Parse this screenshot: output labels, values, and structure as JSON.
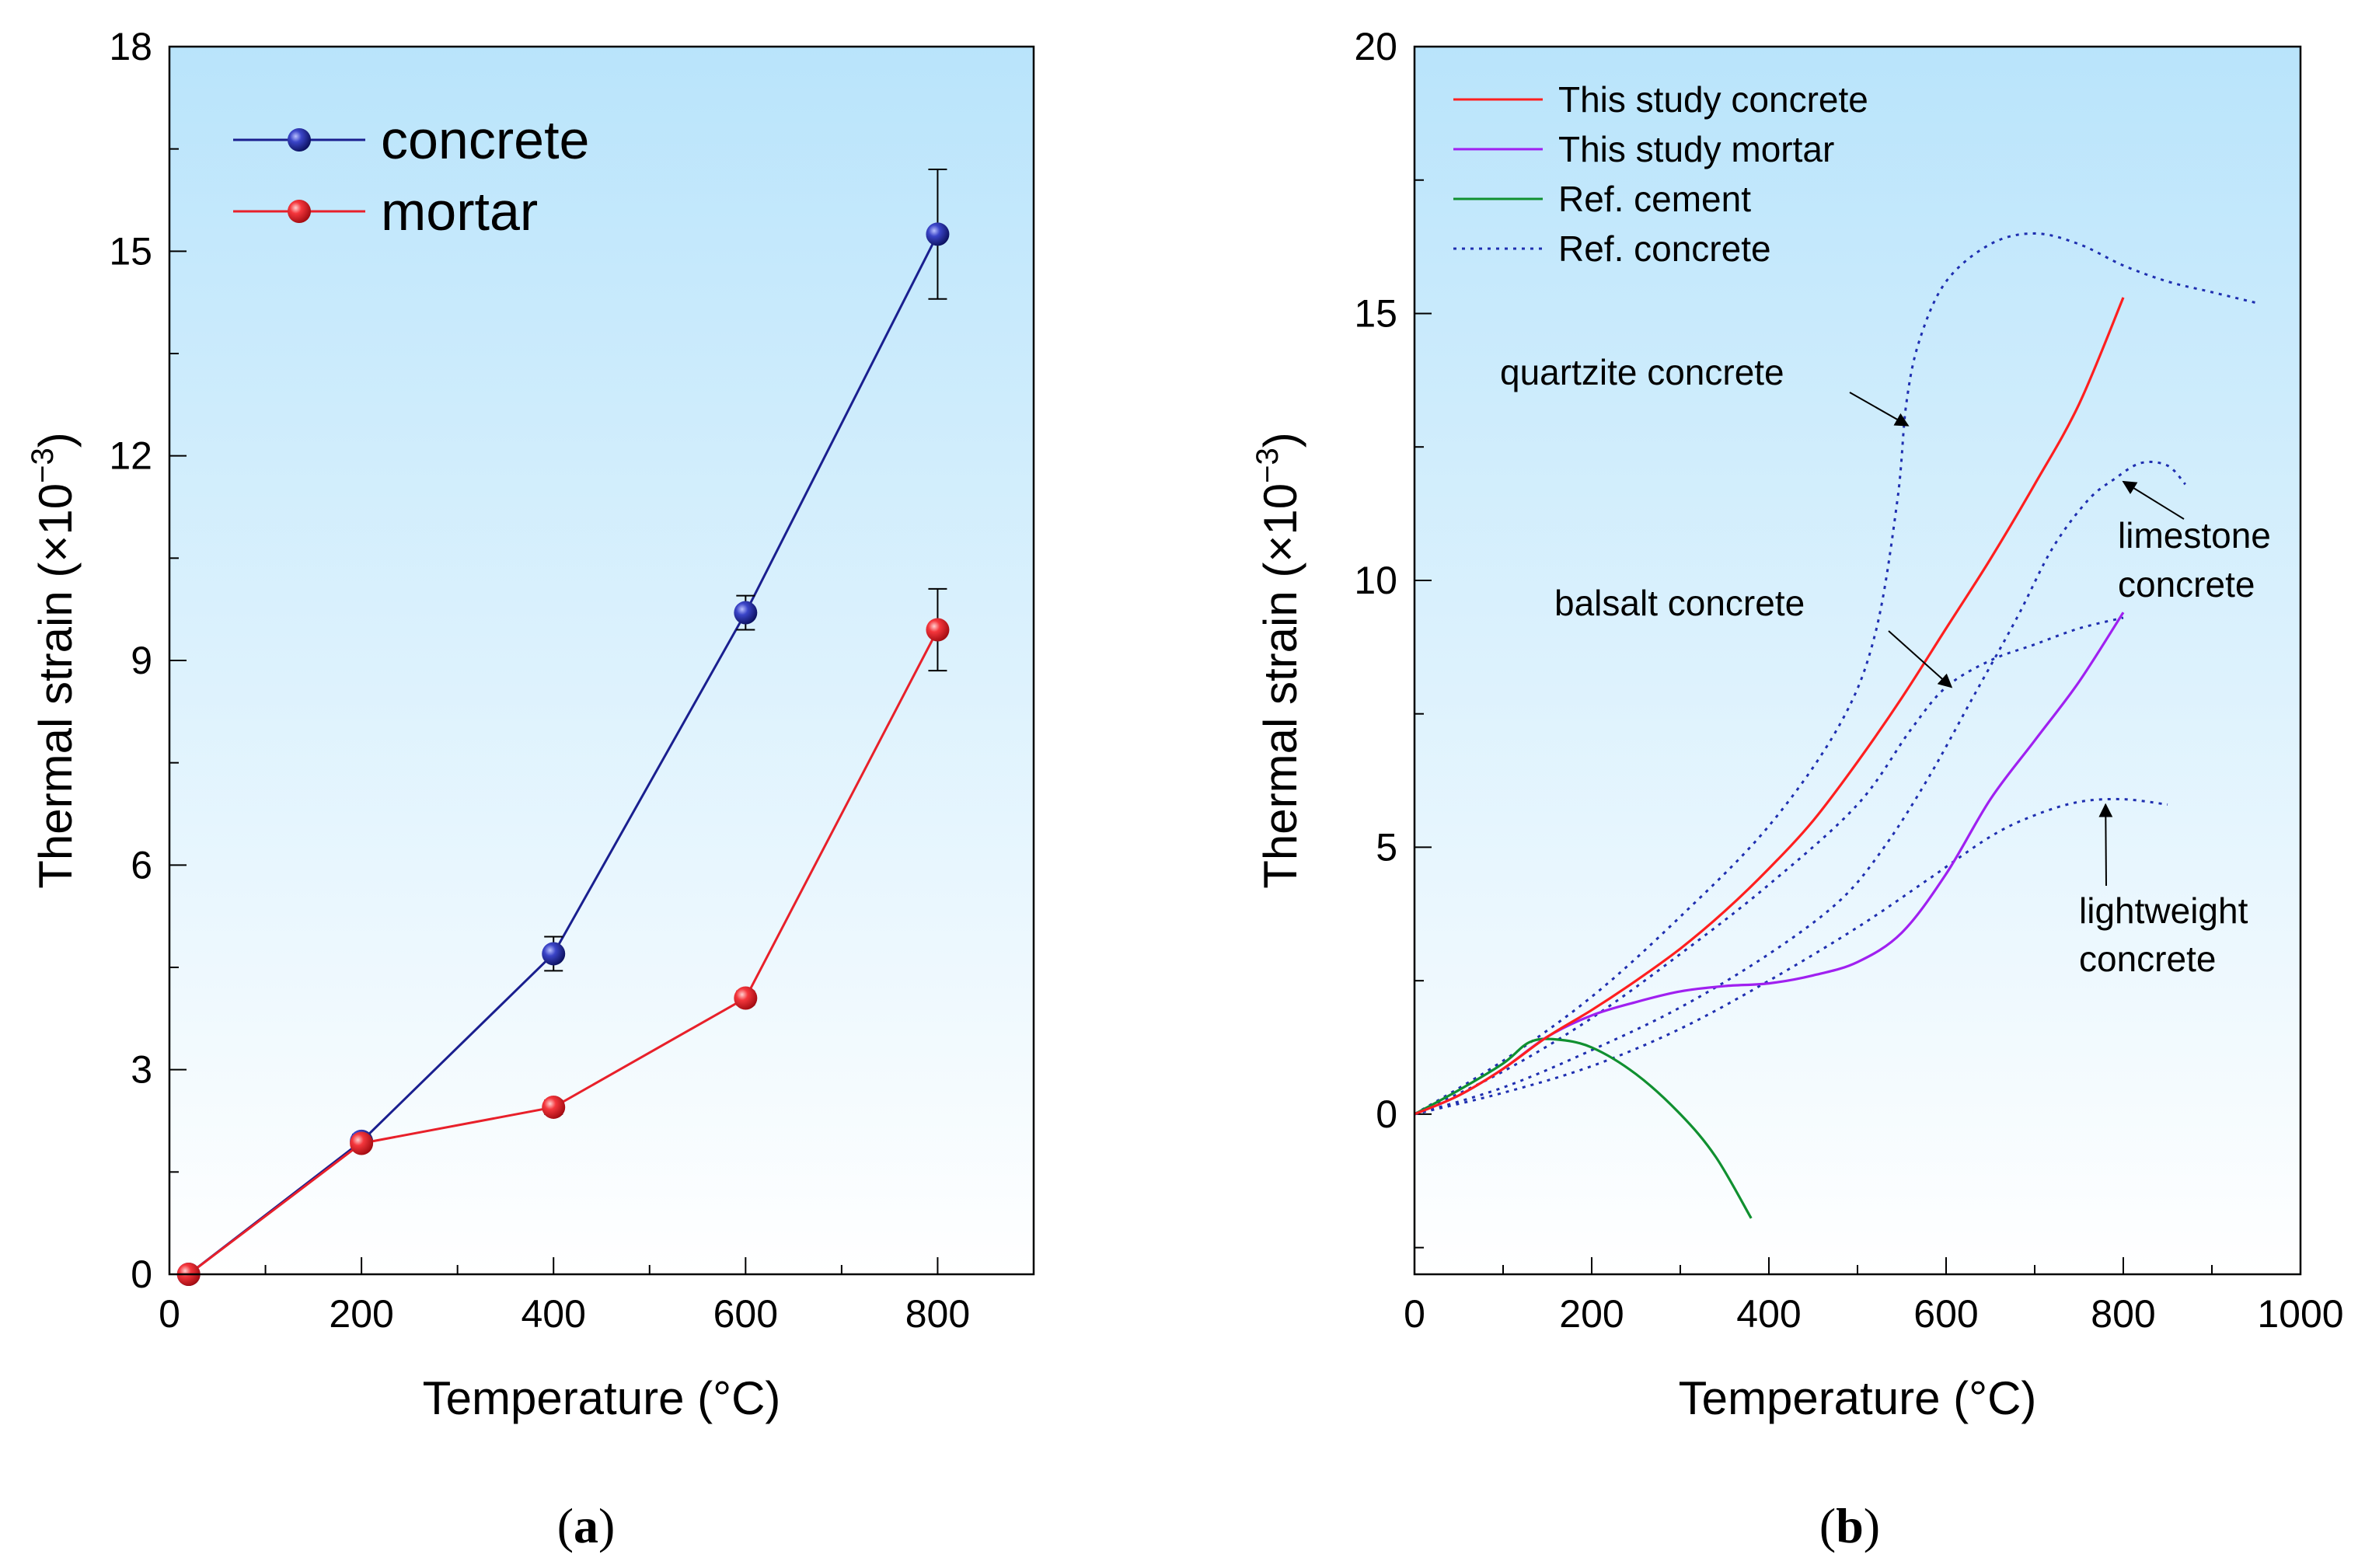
{
  "chart_data": [
    {
      "type": "line",
      "panel_label": "a",
      "xlabel": "Temperature (°C)",
      "ylabel": "Thermal strain (×10",
      "ylabel_exp": "−3",
      "xlim": [
        0,
        900
      ],
      "ylim": [
        0,
        18
      ],
      "x_ticks": [
        "0",
        "200",
        "400",
        "600",
        "800"
      ],
      "y_ticks": [
        "0",
        "3",
        "6",
        "9",
        "12",
        "15",
        "18"
      ],
      "background_gradient": [
        "#b9e4fb",
        "#ffffff"
      ],
      "legend": {
        "position": "top-left",
        "font": "large"
      },
      "series": [
        {
          "name": "concrete",
          "color": "#1a1f8f",
          "marker": "sphere",
          "points": [
            {
              "x": 20,
              "y": 0.0
            },
            {
              "x": 200,
              "y": 1.95,
              "err": 0.1
            },
            {
              "x": 400,
              "y": 4.7,
              "err": 0.25
            },
            {
              "x": 600,
              "y": 9.7,
              "err": 0.25
            },
            {
              "x": 800,
              "y": 15.25,
              "err": 0.95
            }
          ]
        },
        {
          "name": "mortar",
          "color": "#e8202a",
          "marker": "sphere",
          "points": [
            {
              "x": 20,
              "y": 0.0
            },
            {
              "x": 200,
              "y": 1.92,
              "err": 0.08
            },
            {
              "x": 400,
              "y": 2.45,
              "err": 0.1
            },
            {
              "x": 600,
              "y": 4.05,
              "err": 0.1
            },
            {
              "x": 800,
              "y": 9.45,
              "err": 0.6
            }
          ]
        }
      ]
    },
    {
      "type": "line",
      "panel_label": "b",
      "xlabel": "Temperature (°C)",
      "ylabel": "Thermal strain (×10",
      "ylabel_exp": "−3",
      "xlim": [
        0,
        1000
      ],
      "ylim": [
        -3,
        20
      ],
      "x_ticks": [
        "0",
        "200",
        "400",
        "600",
        "800",
        "1000"
      ],
      "y_ticks": [
        "0",
        "5",
        "10",
        "15",
        "20"
      ],
      "background_gradient": [
        "#b9e4fb",
        "#ffffff"
      ],
      "legend": {
        "position": "top-left"
      },
      "series": [
        {
          "name": "This study concrete",
          "color": "#ff1f1f",
          "style": "solid",
          "points": [
            [
              0,
              0
            ],
            [
              50,
              0.35
            ],
            [
              100,
              0.85
            ],
            [
              150,
              1.45
            ],
            [
              200,
              1.95
            ],
            [
              250,
              2.5
            ],
            [
              300,
              3.1
            ],
            [
              350,
              3.8
            ],
            [
              400,
              4.6
            ],
            [
              450,
              5.5
            ],
            [
              500,
              6.6
            ],
            [
              550,
              7.8
            ],
            [
              600,
              9.1
            ],
            [
              650,
              10.4
            ],
            [
              700,
              11.8
            ],
            [
              750,
              13.3
            ],
            [
              800,
              15.3
            ]
          ]
        },
        {
          "name": "This study mortar",
          "color": "#a020f0",
          "style": "solid",
          "points": [
            [
              0,
              0
            ],
            [
              50,
              0.35
            ],
            [
              100,
              0.85
            ],
            [
              150,
              1.45
            ],
            [
              200,
              1.85
            ],
            [
              250,
              2.1
            ],
            [
              300,
              2.3
            ],
            [
              350,
              2.4
            ],
            [
              400,
              2.45
            ],
            [
              450,
              2.6
            ],
            [
              500,
              2.85
            ],
            [
              550,
              3.4
            ],
            [
              600,
              4.5
            ],
            [
              650,
              5.9
            ],
            [
              700,
              7.0
            ],
            [
              750,
              8.1
            ],
            [
              800,
              9.4
            ]
          ]
        },
        {
          "name": "Ref. cement",
          "color": "#109030",
          "style": "solid",
          "points": [
            [
              0,
              0
            ],
            [
              50,
              0.45
            ],
            [
              100,
              0.95
            ],
            [
              130,
              1.35
            ],
            [
              160,
              1.4
            ],
            [
              200,
              1.25
            ],
            [
              250,
              0.75
            ],
            [
              300,
              0.0
            ],
            [
              340,
              -0.8
            ],
            [
              380,
              -1.95
            ]
          ]
        },
        {
          "name": "Ref. concrete",
          "color": "#1f2fb0",
          "style": "dotted",
          "label": "quartzite concrete",
          "points": [
            [
              0,
              0
            ],
            [
              100,
              1.0
            ],
            [
              200,
              2.2
            ],
            [
              300,
              3.7
            ],
            [
              400,
              5.4
            ],
            [
              480,
              7.3
            ],
            [
              520,
              9.0
            ],
            [
              545,
              11.5
            ],
            [
              555,
              13.3
            ],
            [
              570,
              14.5
            ],
            [
              600,
              15.6
            ],
            [
              650,
              16.3
            ],
            [
              700,
              16.5
            ],
            [
              750,
              16.3
            ],
            [
              800,
              15.9
            ],
            [
              850,
              15.6
            ],
            [
              900,
              15.4
            ],
            [
              950,
              15.2
            ]
          ]
        },
        {
          "name": "",
          "color": "#1f2fb0",
          "style": "dotted",
          "label": "balsalt concrete",
          "points": [
            [
              0,
              0
            ],
            [
              100,
              0.8
            ],
            [
              200,
              1.8
            ],
            [
              300,
              3.0
            ],
            [
              400,
              4.3
            ],
            [
              500,
              5.8
            ],
            [
              560,
              7.2
            ],
            [
              600,
              8.0
            ],
            [
              650,
              8.5
            ],
            [
              700,
              8.8
            ],
            [
              750,
              9.1
            ],
            [
              800,
              9.3
            ]
          ]
        },
        {
          "name": "",
          "color": "#1f2fb0",
          "style": "dotted",
          "label": "limestone concrete",
          "points": [
            [
              0,
              0
            ],
            [
              100,
              0.5
            ],
            [
              200,
              1.2
            ],
            [
              300,
              2.0
            ],
            [
              400,
              3.0
            ],
            [
              480,
              4.0
            ],
            [
              530,
              5.0
            ],
            [
              580,
              6.3
            ],
            [
              630,
              7.8
            ],
            [
              680,
              9.3
            ],
            [
              720,
              10.6
            ],
            [
              760,
              11.5
            ],
            [
              790,
              11.9
            ],
            [
              820,
              12.2
            ],
            [
              850,
              12.15
            ],
            [
              870,
              11.8
            ]
          ]
        },
        {
          "name": "",
          "color": "#1f2fb0",
          "style": "dotted",
          "label": "lightweight concrete",
          "points": [
            [
              0,
              0
            ],
            [
              100,
              0.4
            ],
            [
              200,
              0.9
            ],
            [
              300,
              1.6
            ],
            [
              400,
              2.5
            ],
            [
              500,
              3.5
            ],
            [
              580,
              4.4
            ],
            [
              650,
              5.2
            ],
            [
              700,
              5.6
            ],
            [
              750,
              5.85
            ],
            [
              800,
              5.9
            ],
            [
              850,
              5.8
            ]
          ]
        }
      ],
      "annotations": [
        {
          "text": "quartzite concrete",
          "arrow_to": [
            557,
            12.9
          ]
        },
        {
          "text": "balsalt concrete",
          "arrow_to": [
            606,
            8.0
          ]
        },
        {
          "text": "limestone",
          "text2": "concrete",
          "arrow_to": [
            800,
            11.85
          ]
        },
        {
          "text": "lightweight",
          "text2": "concrete",
          "arrow_to": [
            780,
            5.8
          ]
        }
      ]
    }
  ]
}
